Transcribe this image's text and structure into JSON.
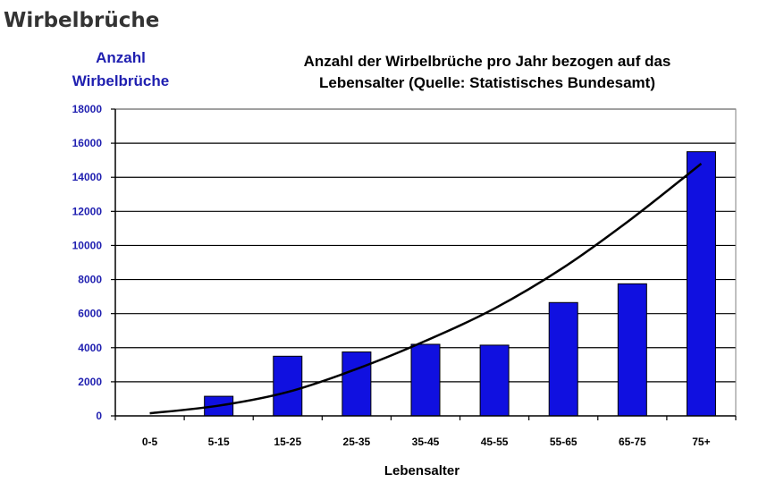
{
  "page": {
    "heading": "Wirbelbrüche"
  },
  "chart_data": {
    "type": "bar",
    "title_lines": [
      "Anzahl der Wirbelbrüche pro Jahr bezogen auf das",
      "Lebensalter (Quelle: Statistisches Bundesamt)"
    ],
    "ylabel_lines": [
      "Anzahl",
      "Wirbelbrüche"
    ],
    "xlabel": "Lebensalter",
    "categories": [
      "0-5",
      "5-15",
      "15-25",
      "25-35",
      "35-45",
      "45-55",
      "55-65",
      "65-75",
      "75+"
    ],
    "values": [
      0,
      1150,
      3500,
      3750,
      4200,
      4150,
      6650,
      7750,
      15500
    ],
    "trend": [
      150,
      600,
      1400,
      2750,
      4400,
      6300,
      8700,
      11600,
      14800
    ],
    "ylim": [
      0,
      18000
    ],
    "yticks": [
      0,
      2000,
      4000,
      6000,
      8000,
      10000,
      12000,
      14000,
      16000,
      18000
    ],
    "grid": true,
    "bar_color": "#1010e0",
    "trend_color": "#000000"
  }
}
